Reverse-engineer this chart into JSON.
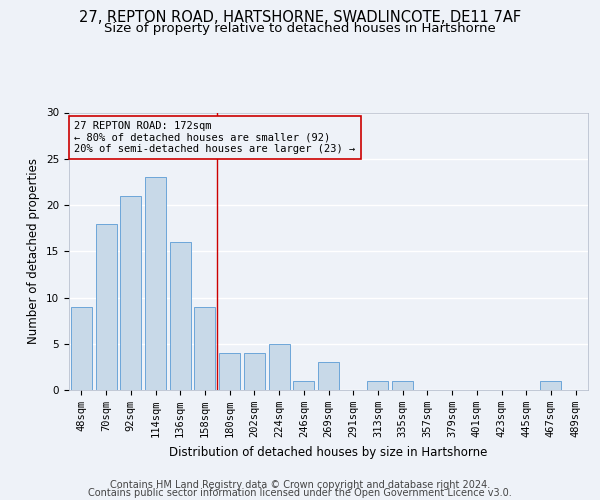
{
  "title1": "27, REPTON ROAD, HARTSHORNE, SWADLINCOTE, DE11 7AF",
  "title2": "Size of property relative to detached houses in Hartshorne",
  "xlabel": "Distribution of detached houses by size in Hartshorne",
  "ylabel": "Number of detached properties",
  "categories": [
    "48sqm",
    "70sqm",
    "92sqm",
    "114sqm",
    "136sqm",
    "158sqm",
    "180sqm",
    "202sqm",
    "224sqm",
    "246sqm",
    "269sqm",
    "291sqm",
    "313sqm",
    "335sqm",
    "357sqm",
    "379sqm",
    "401sqm",
    "423sqm",
    "445sqm",
    "467sqm",
    "489sqm"
  ],
  "values": [
    9,
    18,
    21,
    23,
    16,
    9,
    4,
    4,
    5,
    1,
    3,
    0,
    1,
    1,
    0,
    0,
    0,
    0,
    0,
    1,
    0
  ],
  "bar_color": "#c8d9e8",
  "bar_edge_color": "#5b9bd5",
  "vline_x": 5.5,
  "vline_color": "#cc0000",
  "annotation_line1": "27 REPTON ROAD: 172sqm",
  "annotation_line2": "← 80% of detached houses are smaller (92)",
  "annotation_line3": "20% of semi-detached houses are larger (23) →",
  "annotation_box_color": "#cc0000",
  "ylim": [
    0,
    30
  ],
  "yticks": [
    0,
    5,
    10,
    15,
    20,
    25,
    30
  ],
  "footer1": "Contains HM Land Registry data © Crown copyright and database right 2024.",
  "footer2": "Contains public sector information licensed under the Open Government Licence v3.0.",
  "bg_color": "#eef2f8",
  "grid_color": "#ffffff",
  "title1_fontsize": 10.5,
  "title2_fontsize": 9.5,
  "axis_label_fontsize": 8.5,
  "tick_fontsize": 7.5,
  "footer_fontsize": 7.0,
  "ann_fontsize": 7.5
}
